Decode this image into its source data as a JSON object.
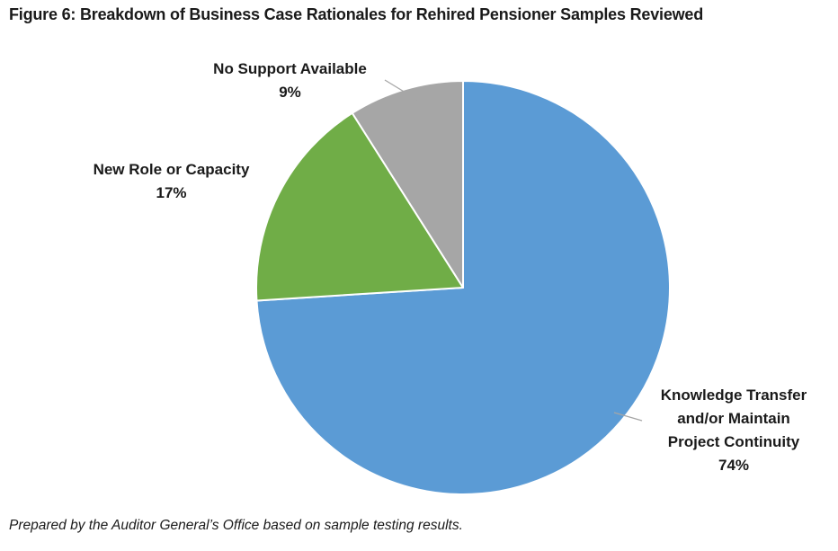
{
  "title": "Figure 6: Breakdown of Business Case Rationales for Rehired Pensioner Samples Reviewed",
  "footer": "Prepared by the Auditor General’s Office based on sample testing results.",
  "colors": {
    "blue": "#5B9BD5",
    "green": "#70AD47",
    "gray": "#A6A6A6",
    "text": "#1A1A1A",
    "leader_line": "#A6A6A6",
    "separator": "#FFFFFF"
  },
  "chart_data": {
    "type": "pie",
    "title": "Figure 6: Breakdown of Business Case Rationales for Rehired Pensioner Samples Reviewed",
    "start_angle_deg": -90,
    "direction": "clockwise",
    "legend_position": "none",
    "grid": false,
    "slices": [
      {
        "label": "Knowledge Transfer and/or Maintain Project Continuity",
        "value_pct": 74,
        "color": "#5B9BD5",
        "callout": "Knowledge Transfer\nand/or Maintain\nProject Continuity\n74%"
      },
      {
        "label": "New Role or Capacity",
        "value_pct": 17,
        "color": "#70AD47",
        "callout": "New Role or Capacity\n17%"
      },
      {
        "label": "No Support Available",
        "value_pct": 9,
        "color": "#A6A6A6",
        "callout": "No Support Available\n9%"
      }
    ]
  }
}
